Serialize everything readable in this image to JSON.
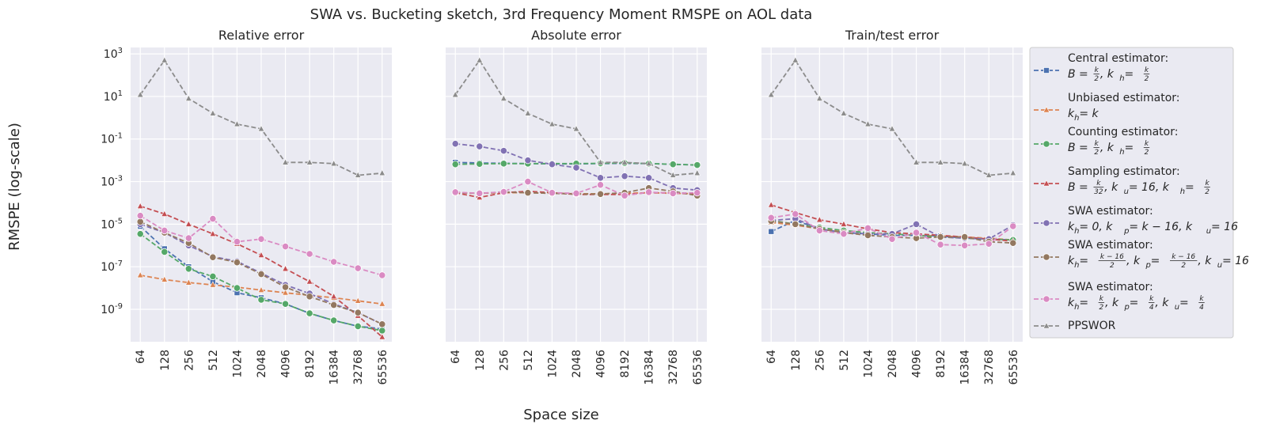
{
  "figure": {
    "title": "SWA vs. Bucketing sketch, 3rd Frequency Moment RMSPE on AOL data",
    "xlabel": "Space size",
    "ylabel": "RMSPE (log-scale)"
  },
  "chart_data": [
    {
      "type": "line",
      "title": "Relative error",
      "y_scale": "log",
      "ylim": [
        3e-11,
        2000
      ],
      "yticks": [
        "10^3",
        "10^1",
        "10^-1",
        "10^-3",
        "10^-5",
        "10^-7",
        "10^-9"
      ],
      "grid": true,
      "categories": [
        "64",
        "128",
        "256",
        "512",
        "1024",
        "2048",
        "4096",
        "8192",
        "16384",
        "32768",
        "65536"
      ],
      "series": [
        {
          "key": "central",
          "values": [
            8e-06,
            7e-07,
            1e-07,
            2e-08,
            6e-09,
            3.5e-09,
            1.8e-09,
            6.5e-10,
            3e-10,
            1.6e-10,
            1.2e-10
          ]
        },
        {
          "key": "unbiased",
          "values": [
            4e-08,
            2.5e-08,
            1.8e-08,
            1.4e-08,
            1.1e-08,
            8e-09,
            6e-09,
            4.5e-09,
            3.5e-09,
            2.5e-09,
            1.8e-09
          ]
        },
        {
          "key": "counting",
          "values": [
            3.5e-06,
            5e-07,
            8e-08,
            3.5e-08,
            1e-08,
            2.8e-09,
            1.8e-09,
            6.5e-10,
            3e-10,
            1.6e-10,
            1e-10
          ]
        },
        {
          "key": "sampling",
          "values": [
            7e-05,
            3e-05,
            1e-05,
            3.5e-06,
            1.2e-06,
            3.5e-07,
            8e-08,
            2e-08,
            4e-09,
            5e-10,
            5e-11
          ]
        },
        {
          "key": "swa1",
          "values": [
            1e-05,
            4e-06,
            1e-06,
            3e-07,
            1.8e-07,
            5e-08,
            1.4e-08,
            5.5e-09,
            1.8e-09,
            7e-10,
            2e-10
          ]
        },
        {
          "key": "swa2",
          "values": [
            1.3e-05,
            4e-06,
            1.3e-06,
            2.8e-07,
            1.6e-07,
            4.5e-08,
            1.1e-08,
            4e-09,
            1.6e-09,
            7e-10,
            2e-10
          ]
        },
        {
          "key": "swa3",
          "values": [
            2.5e-05,
            5e-06,
            2.2e-06,
            1.8e-05,
            1.5e-06,
            2e-06,
            9e-07,
            4e-07,
            1.7e-07,
            8.5e-08,
            4e-08
          ]
        },
        {
          "key": "ppswor",
          "values": [
            12,
            500,
            8,
            1.6,
            0.5,
            0.3,
            0.008,
            0.008,
            0.007,
            0.002,
            0.0025
          ]
        }
      ]
    },
    {
      "type": "line",
      "title": "Absolute error",
      "y_scale": "log",
      "grid": true,
      "categories": [
        "64",
        "128",
        "256",
        "512",
        "1024",
        "2048",
        "4096",
        "8192",
        "16384",
        "32768",
        "65536"
      ],
      "series": [
        {
          "key": "central",
          "values": [
            0.008,
            0.0075,
            0.0072,
            0.007,
            0.0068,
            0.0068,
            0.007,
            0.0072,
            0.007,
            0.0065,
            0.006
          ]
        },
        {
          "key": "unbiased",
          "values": [
            0.0003,
            0.00028,
            0.0003,
            0.0003,
            0.00028,
            0.00027,
            0.00027,
            0.00028,
            0.0003,
            0.00028,
            0.00027
          ]
        },
        {
          "key": "counting",
          "values": [
            0.0065,
            0.0068,
            0.007,
            0.007,
            0.007,
            0.007,
            0.0072,
            0.0075,
            0.007,
            0.0065,
            0.006
          ]
        },
        {
          "key": "sampling",
          "values": [
            0.0003,
            0.00018,
            0.0003,
            0.00035,
            0.0003,
            0.00025,
            0.00025,
            0.00025,
            0.0003,
            0.0003,
            0.00025
          ]
        },
        {
          "key": "swa1",
          "values": [
            0.06,
            0.045,
            0.028,
            0.01,
            0.0065,
            0.0045,
            0.0015,
            0.0018,
            0.0015,
            0.0005,
            0.0004
          ]
        },
        {
          "key": "swa2",
          "values": [
            0.0003,
            0.00028,
            0.00032,
            0.0003,
            0.00028,
            0.00026,
            0.00026,
            0.0003,
            0.0005,
            0.00035,
            0.00022
          ]
        },
        {
          "key": "swa3",
          "values": [
            0.00032,
            0.00028,
            0.00033,
            0.001,
            0.0003,
            0.00028,
            0.0007,
            0.00022,
            0.00032,
            0.00028,
            0.0003
          ]
        },
        {
          "key": "ppswor",
          "values": [
            12,
            500,
            8,
            1.6,
            0.5,
            0.3,
            0.008,
            0.008,
            0.007,
            0.002,
            0.0025
          ]
        }
      ]
    },
    {
      "type": "line",
      "title": "Train/test error",
      "y_scale": "log",
      "grid": true,
      "categories": [
        "64",
        "128",
        "256",
        "512",
        "1024",
        "2048",
        "4096",
        "8192",
        "16384",
        "32768",
        "65536"
      ],
      "series": [
        {
          "key": "central",
          "values": [
            4.5e-06,
            1.5e-05,
            6e-06,
            4e-06,
            3.5e-06,
            3e-06,
            3e-06,
            2.8e-06,
            2.2e-06,
            2e-06,
            1.8e-06
          ]
        },
        {
          "key": "unbiased",
          "values": [
            1.2e-05,
            9e-06,
            6e-06,
            5e-06,
            4e-06,
            3.5e-06,
            3e-06,
            2.8e-06,
            2.5e-06,
            2.2e-06,
            1.8e-06
          ]
        },
        {
          "key": "counting",
          "values": [
            1.5e-05,
            1e-05,
            7e-06,
            5e-06,
            4e-06,
            3.5e-06,
            3e-06,
            2.5e-06,
            2.2e-06,
            2e-06,
            1.8e-06
          ]
        },
        {
          "key": "sampling",
          "values": [
            8e-05,
            3.5e-05,
            1.6e-05,
            1e-05,
            6e-06,
            4e-06,
            3.5e-06,
            3e-06,
            2.5e-06,
            2e-06,
            1.6e-06
          ]
        },
        {
          "key": "swa1",
          "values": [
            1.5e-05,
            1.8e-05,
            6e-06,
            4e-06,
            3.5e-06,
            3.5e-06,
            1e-05,
            2.5e-06,
            2.2e-06,
            2e-06,
            9e-06
          ]
        },
        {
          "key": "swa2",
          "values": [
            1.4e-05,
            1e-05,
            6e-06,
            4e-06,
            3e-06,
            2.5e-06,
            2.2e-06,
            2.5e-06,
            2.5e-06,
            1.5e-06,
            1.3e-06
          ]
        },
        {
          "key": "swa3",
          "values": [
            2e-05,
            3e-05,
            5e-06,
            3.5e-06,
            6.5e-06,
            2e-06,
            4e-06,
            1.1e-06,
            1e-06,
            1.2e-06,
            8e-06
          ]
        },
        {
          "key": "ppswor",
          "values": [
            12,
            500,
            8,
            1.6,
            0.5,
            0.3,
            0.008,
            0.008,
            0.007,
            0.002,
            0.0025
          ]
        }
      ]
    }
  ],
  "legend": {
    "placement": "right",
    "items": [
      {
        "key": "central",
        "marker": "square",
        "color": "#4c72b0",
        "line1": "Central estimator:",
        "math": [
          [
            "t",
            "B = "
          ],
          [
            "f",
            "k",
            "2"
          ],
          [
            "t",
            ", k"
          ],
          [
            "s",
            "h"
          ],
          [
            "t",
            " = "
          ],
          [
            "f",
            "k",
            "2"
          ]
        ]
      },
      {
        "key": "unbiased",
        "marker": "triangle",
        "color": "#dd8452",
        "line1": "Unbiased estimator:",
        "math": [
          [
            "t",
            "k"
          ],
          [
            "s",
            "h"
          ],
          [
            "t",
            " = k"
          ]
        ]
      },
      {
        "key": "counting",
        "marker": "circle",
        "color": "#55a868",
        "line1": "Counting estimator:",
        "math": [
          [
            "t",
            "B = "
          ],
          [
            "f",
            "k",
            "2"
          ],
          [
            "t",
            ", k"
          ],
          [
            "s",
            "h"
          ],
          [
            "t",
            " = "
          ],
          [
            "f",
            "k",
            "2"
          ]
        ]
      },
      {
        "key": "sampling",
        "marker": "triangle",
        "color": "#c44e52",
        "line1": "Sampling estimator:",
        "math": [
          [
            "t",
            "B = "
          ],
          [
            "f",
            "k",
            "32"
          ],
          [
            "t",
            ", k"
          ],
          [
            "s",
            "u"
          ],
          [
            "t",
            " = 16, k"
          ],
          [
            "s",
            "h"
          ],
          [
            "t",
            " = "
          ],
          [
            "f",
            "k",
            "2"
          ]
        ]
      },
      {
        "key": "swa1",
        "marker": "circle",
        "color": "#8172b3",
        "line1": "SWA estimator:",
        "math": [
          [
            "t",
            "k"
          ],
          [
            "s",
            "h"
          ],
          [
            "t",
            " = 0, k"
          ],
          [
            "s",
            "p"
          ],
          [
            "t",
            " = k − 16, k"
          ],
          [
            "s",
            "u"
          ],
          [
            "t",
            " = 16"
          ]
        ]
      },
      {
        "key": "swa2",
        "marker": "circle",
        "color": "#937860",
        "line1": "SWA estimator:",
        "math": [
          [
            "t",
            "k"
          ],
          [
            "s",
            "h"
          ],
          [
            "t",
            " = "
          ],
          [
            "f",
            "k − 16",
            "2"
          ],
          [
            "t",
            ", k"
          ],
          [
            "s",
            "p"
          ],
          [
            "t",
            " = "
          ],
          [
            "f",
            "k − 16",
            "2"
          ],
          [
            "t",
            ", k"
          ],
          [
            "s",
            "u"
          ],
          [
            "t",
            " = 16"
          ]
        ]
      },
      {
        "key": "swa3",
        "marker": "circle",
        "color": "#da8bc3",
        "line1": "SWA estimator:",
        "math": [
          [
            "t",
            "k"
          ],
          [
            "s",
            "h"
          ],
          [
            "t",
            " = "
          ],
          [
            "f",
            "k",
            "2"
          ],
          [
            "t",
            ", k"
          ],
          [
            "s",
            "p"
          ],
          [
            "t",
            " = "
          ],
          [
            "f",
            "k",
            "4"
          ],
          [
            "t",
            ", k"
          ],
          [
            "s",
            "u"
          ],
          [
            "t",
            " = "
          ],
          [
            "f",
            "k",
            "4"
          ]
        ]
      },
      {
        "key": "ppswor",
        "marker": "triangle",
        "color": "#8c8c8c",
        "line1": "PPSWOR",
        "math": []
      }
    ]
  }
}
